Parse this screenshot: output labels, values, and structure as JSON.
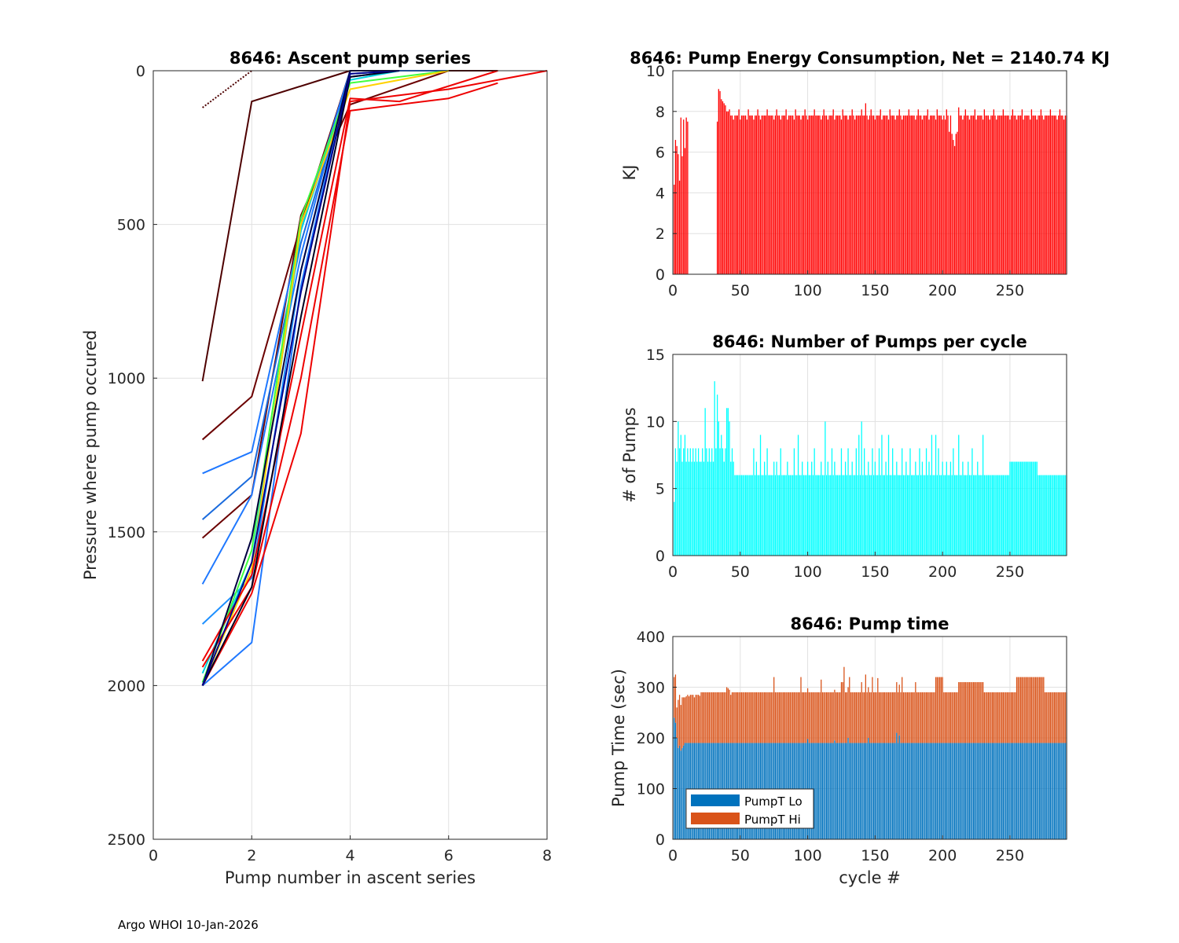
{
  "footer": "Argo WHOI 10-Jan-2026",
  "chart_data": [
    {
      "id": "ascent",
      "type": "line",
      "title": "8646: Ascent pump series",
      "xlabel": "Pump number in ascent series",
      "ylabel": "Pressure where pump occured",
      "xlim": [
        0,
        8
      ],
      "ylim": [
        0,
        2500
      ],
      "y_reversed": true,
      "xticks": [
        0,
        2,
        4,
        6,
        8
      ],
      "yticks": [
        0,
        500,
        1000,
        1500,
        2000,
        2500
      ],
      "grid": true,
      "series": [
        {
          "color": "#4d0000",
          "x": [
            1,
            2
          ],
          "y": [
            120,
            0
          ],
          "style": "dotted"
        },
        {
          "color": "#4d0000",
          "x": [
            1,
            2,
            4,
            7
          ],
          "y": [
            1010,
            100,
            0,
            0
          ],
          "style": "mixed"
        },
        {
          "color": "#6b0000",
          "x": [
            1,
            2,
            3,
            4,
            5
          ],
          "y": [
            1200,
            1060,
            500,
            0,
            0
          ]
        },
        {
          "color": "#6b0000",
          "x": [
            1,
            2,
            3,
            4,
            6
          ],
          "y": [
            1520,
            1380,
            470,
            110,
            0
          ]
        },
        {
          "color": "#1f78ff",
          "x": [
            1,
            2,
            3,
            4,
            5
          ],
          "y": [
            1310,
            1240,
            520,
            0,
            0
          ]
        },
        {
          "color": "#1a6bdd",
          "x": [
            1,
            2,
            3,
            4,
            5
          ],
          "y": [
            1460,
            1320,
            560,
            20,
            0
          ]
        },
        {
          "color": "#1f78ff",
          "x": [
            1,
            2,
            3,
            4,
            5
          ],
          "y": [
            1670,
            1380,
            600,
            0,
            0
          ]
        },
        {
          "color": "#1e90ff",
          "x": [
            1,
            2,
            3,
            4,
            5
          ],
          "y": [
            1800,
            1650,
            650,
            10,
            0
          ]
        },
        {
          "color": "#1f78ff",
          "x": [
            1,
            2,
            3,
            4,
            6
          ],
          "y": [
            2000,
            1860,
            700,
            0,
            0
          ]
        },
        {
          "color": "#00d4e0",
          "x": [
            1,
            2,
            3,
            4,
            5
          ],
          "y": [
            1960,
            1600,
            520,
            30,
            0
          ]
        },
        {
          "color": "#3fff3f",
          "x": [
            1,
            2,
            3,
            4,
            6
          ],
          "y": [
            1990,
            1560,
            480,
            40,
            0
          ]
        },
        {
          "color": "#ffd200",
          "x": [
            1,
            2,
            3,
            4,
            6
          ],
          "y": [
            2000,
            1620,
            500,
            60,
            0
          ]
        },
        {
          "color": "#ee0000",
          "x": [
            1,
            2,
            3,
            4,
            6,
            7
          ],
          "y": [
            1940,
            1680,
            1000,
            130,
            90,
            40
          ]
        },
        {
          "color": "#ee0000",
          "x": [
            1,
            2,
            3,
            4,
            5,
            6,
            8
          ],
          "y": [
            2000,
            1700,
            1180,
            100,
            80,
            60,
            0
          ]
        },
        {
          "color": "#ee0000",
          "x": [
            1,
            2,
            3,
            4,
            5,
            7
          ],
          "y": [
            1920,
            1640,
            860,
            90,
            100,
            0
          ]
        },
        {
          "color": "#000020",
          "x": [
            1,
            2,
            3,
            4,
            5
          ],
          "y": [
            2000,
            1680,
            800,
            20,
            0
          ]
        },
        {
          "color": "#000040",
          "x": [
            1,
            2,
            3,
            4,
            5
          ],
          "y": [
            2000,
            1520,
            650,
            0,
            0
          ]
        },
        {
          "color": "#00008b",
          "x": [
            1,
            2,
            3,
            4,
            5
          ],
          "y": [
            2000,
            1600,
            720,
            10,
            0
          ]
        }
      ]
    },
    {
      "id": "energy",
      "type": "bar",
      "title": "8646: Pump Energy Consumption,  Net = 2140.74 KJ",
      "xlabel": "",
      "ylabel": "KJ",
      "xlim": [
        0,
        292
      ],
      "ylim": [
        0,
        10
      ],
      "xticks": [
        0,
        50,
        100,
        150,
        200,
        250
      ],
      "yticks": [
        0,
        2,
        4,
        6,
        8,
        10
      ],
      "grid": true,
      "color": "#ff0000",
      "segments": [
        {
          "start": 1,
          "values": [
            4.4,
            6.6,
            6.3,
            5.9,
            4.6,
            7.7,
            5.8,
            7.6,
            6.2,
            7.7,
            7.5
          ]
        },
        {
          "start": 33,
          "end": 292,
          "base": 7.8,
          "values_at": {
            "33": 7.5,
            "34": 9.1,
            "35": 8.7,
            "36": 8.6,
            "37": 8.5,
            "38": 8.4,
            "39": 8.3,
            "40": 8.2,
            "41": 8.0,
            "143": 8.4,
            "202": 7.6,
            "205": 7.2,
            "207": 6.9,
            "208": 6.6,
            "209": 6.3,
            "210": 6.6,
            "211": 7.0,
            "212": 8.2
          }
        }
      ]
    },
    {
      "id": "pumps",
      "type": "bar",
      "title": "8646: Number of Pumps per cycle",
      "xlabel": "",
      "ylabel": "# of Pumps",
      "xlim": [
        0,
        292
      ],
      "ylim": [
        0,
        15
      ],
      "xticks": [
        0,
        50,
        100,
        150,
        200,
        250
      ],
      "yticks": [
        0,
        5,
        10,
        15
      ],
      "grid": true,
      "color": "#00ffff",
      "base": 6,
      "values_at": {
        "1": 4,
        "2": 8,
        "3": 7,
        "4": 10,
        "5": 8,
        "6": 9,
        "7": 7,
        "8": 8,
        "9": 9,
        "10": 7,
        "11": 8,
        "12": 7,
        "13": 8,
        "14": 7,
        "15": 8,
        "16": 7,
        "17": 8,
        "18": 7,
        "19": 8,
        "20": 7,
        "21": 7,
        "22": 8,
        "23": 7,
        "24": 11,
        "25": 8,
        "26": 7,
        "27": 8,
        "28": 7,
        "29": 8,
        "30": 7,
        "31": 13,
        "32": 8,
        "33": 12,
        "34": 10,
        "35": 8,
        "36": 9,
        "37": 8,
        "38": 7,
        "39": 8,
        "40": 11,
        "41": 11,
        "42": 10,
        "43": 7,
        "44": 8,
        "45": 7,
        "60": 8,
        "62": 7,
        "65": 9,
        "68": 7,
        "70": 8,
        "75": 7,
        "77": 7,
        "80": 8,
        "85": 7,
        "90": 8,
        "93": 9,
        "96": 7,
        "100": 7,
        "103": 7,
        "105": 8,
        "110": 7,
        "113": 10,
        "115": 7,
        "118": 8,
        "120": 7,
        "125": 8,
        "128": 7,
        "130": 8,
        "133": 7,
        "136": 8,
        "138": 9,
        "140": 10,
        "142": 8,
        "145": 7,
        "148": 8,
        "150": 7,
        "153": 8,
        "155": 9,
        "158": 7,
        "160": 9,
        "163": 8,
        "166": 7,
        "170": 8,
        "173": 7,
        "176": 8,
        "180": 7,
        "183": 8,
        "185": 7,
        "188": 8,
        "190": 7,
        "192": 9,
        "195": 9,
        "197": 8,
        "200": 7,
        "203": 7,
        "206": 7,
        "208": 8,
        "212": 9,
        "215": 7,
        "219": 7,
        "222": 8,
        "226": 7,
        "230": 9,
        "250": 7,
        "251": 7,
        "252": 7,
        "253": 7,
        "254": 7,
        "255": 7,
        "256": 7,
        "257": 7,
        "258": 7,
        "259": 7,
        "260": 7,
        "261": 7,
        "262": 7,
        "263": 7,
        "264": 7,
        "265": 7,
        "266": 7,
        "267": 7,
        "268": 7,
        "269": 7,
        "270": 7
      }
    },
    {
      "id": "pumptime",
      "type": "bar",
      "stacked": true,
      "title": "8646: Pump time",
      "xlabel": "cycle #",
      "ylabel": "Pump Time (sec)",
      "xlim": [
        0,
        292
      ],
      "ylim": [
        0,
        400
      ],
      "xticks": [
        0,
        50,
        100,
        150,
        200,
        250
      ],
      "yticks": [
        0,
        100,
        200,
        300,
        400
      ],
      "grid": true,
      "legend": {
        "position": "bottom-left",
        "entries": [
          "PumpT Lo",
          "PumpT Hi"
        ]
      },
      "series": [
        {
          "name": "PumpT Lo",
          "color": "#0072bd",
          "base": 190,
          "values_at": {
            "1": 240,
            "2": 230,
            "3": 200,
            "4": 180,
            "5": 185,
            "6": 175,
            "7": 180,
            "8": 185,
            "100": 198,
            "120": 195,
            "130": 200,
            "145": 200,
            "166": 210,
            "168": 205
          }
        },
        {
          "name": "PumpT Hi",
          "color": "#d95319",
          "base": 100,
          "values_at": {
            "1": 80,
            "2": 95,
            "3": 60,
            "4": 95,
            "5": 100,
            "6": 90,
            "7": 100,
            "8": 95,
            "9": 90,
            "10": 92,
            "11": 95,
            "12": 92,
            "13": 95,
            "14": 95,
            "15": 95,
            "16": 90,
            "17": 95,
            "18": 95,
            "19": 95,
            "20": 93,
            "40": 110,
            "41": 108,
            "42": 105,
            "43": 95,
            "75": 130,
            "95": 130,
            "110": 125,
            "125": 120,
            "126": 120,
            "127": 150,
            "131": 130,
            "140": 120,
            "143": 135,
            "148": 130,
            "152": 128,
            "170": 130,
            "180": 120,
            "195": 130,
            "196": 130,
            "197": 130,
            "198": 130,
            "199": 130,
            "200": 130,
            "212": 120,
            "213": 120,
            "214": 120,
            "215": 120,
            "216": 120,
            "217": 120,
            "218": 120,
            "219": 120,
            "220": 120,
            "221": 120,
            "222": 120,
            "223": 120,
            "224": 120,
            "225": 120,
            "226": 120,
            "227": 120,
            "228": 120,
            "229": 120,
            "230": 120,
            "255": 130,
            "256": 130,
            "257": 130,
            "258": 130,
            "259": 130,
            "260": 130,
            "261": 130,
            "262": 130,
            "263": 130,
            "264": 130,
            "265": 130,
            "266": 130,
            "267": 130,
            "268": 130,
            "269": 130,
            "270": 130,
            "271": 130,
            "272": 130,
            "273": 130,
            "274": 130,
            "275": 130
          }
        }
      ]
    }
  ]
}
